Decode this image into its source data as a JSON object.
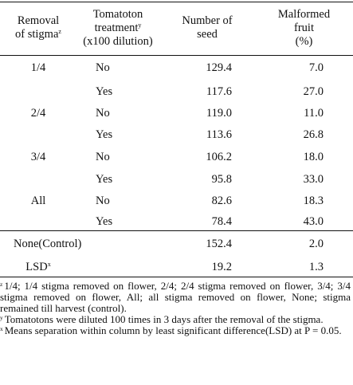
{
  "table": {
    "header": {
      "col1": {
        "line1": "Removal",
        "line2": "of stigma",
        "sup": "z"
      },
      "col2": {
        "line1": "Tomatoton",
        "line2a": "treatment",
        "sup": "y",
        "line3": "(x100 dilution)"
      },
      "col3": {
        "line1": "Number of",
        "line2": "seed"
      },
      "col4": {
        "line1": "Malformed",
        "line2": "fruit",
        "line3": "(%)"
      }
    },
    "rows": [
      {
        "removal": "1/4",
        "treatment": "No",
        "seed": "129.4",
        "malformed": "7.0"
      },
      {
        "removal": "",
        "treatment": "Yes",
        "seed": "117.6",
        "malformed": "27.0"
      },
      {
        "removal": "2/4",
        "treatment": "No",
        "seed": "119.0",
        "malformed": "11.0"
      },
      {
        "removal": "",
        "treatment": "Yes",
        "seed": "113.6",
        "malformed": "26.8"
      },
      {
        "removal": "3/4",
        "treatment": "No",
        "seed": "106.2",
        "malformed": "18.0"
      },
      {
        "removal": "",
        "treatment": "Yes",
        "seed": "95.8",
        "malformed": "33.0"
      },
      {
        "removal": "All",
        "treatment": "No",
        "seed": "82.6",
        "malformed": "18.3"
      },
      {
        "removal": "",
        "treatment": "Yes",
        "seed": "78.4",
        "malformed": "43.0"
      }
    ],
    "control": {
      "label": "None(Control)",
      "seed": "152.4",
      "malformed": "2.0"
    },
    "lsd": {
      "label": "LSD",
      "sup": "x",
      "seed": "19.2",
      "malformed": "1.3"
    }
  },
  "footnotes": [
    {
      "mark": "z",
      "text": "1/4; 1/4 stigma removed on flower, 2/4; 2/4 stigma removed on flower, 3/4; 3/4 stigma removed on flower, All; all stigma removed on flower, None; stigma remained till harvest (control)."
    },
    {
      "mark": "y",
      "text": "Tomatotons were diluted 100 times in 3 days after the removal of the stigma."
    },
    {
      "mark": "x",
      "text": "Means separation within column by least significant difference(LSD) at P = 0.05."
    }
  ]
}
